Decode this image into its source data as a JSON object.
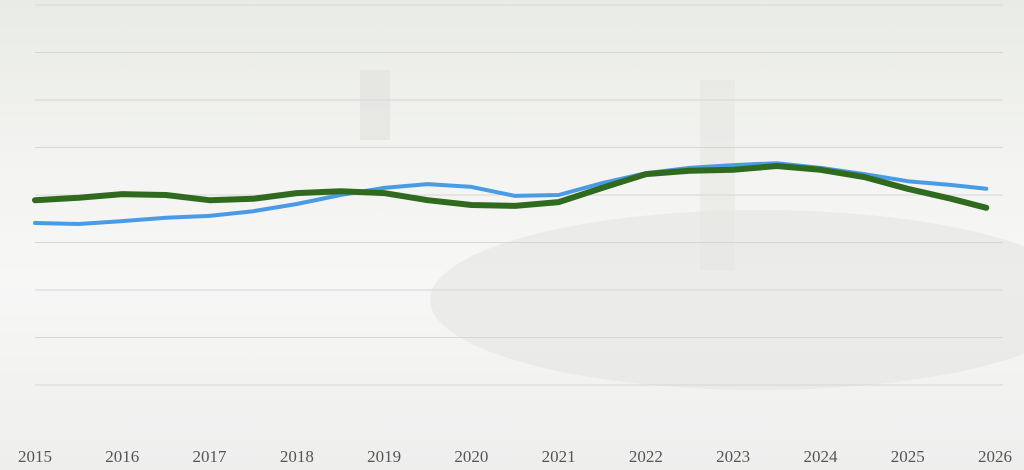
{
  "chart_data": {
    "type": "line",
    "x": [
      2015,
      2015.5,
      2016,
      2016.5,
      2017,
      2017.5,
      2018,
      2018.5,
      2019,
      2019.5,
      2020,
      2020.5,
      2021,
      2021.5,
      2022,
      2022.5,
      2023,
      2023.5,
      2024,
      2024.5,
      2025,
      2025.5,
      2025.9
    ],
    "series": [
      {
        "color": "#4a9be6",
        "values": [
          3.41,
          3.39,
          3.45,
          3.52,
          3.56,
          3.66,
          3.81,
          4.0,
          4.15,
          4.23,
          4.17,
          3.98,
          4.0,
          4.25,
          4.46,
          4.57,
          4.63,
          4.67,
          4.57,
          4.44,
          4.29,
          4.21,
          4.13
        ]
      },
      {
        "color": "#2f6a1f",
        "values": [
          3.89,
          3.94,
          4.02,
          4.0,
          3.89,
          3.92,
          4.04,
          4.08,
          4.04,
          3.89,
          3.79,
          3.77,
          3.85,
          4.15,
          4.44,
          4.51,
          4.53,
          4.61,
          4.53,
          4.38,
          4.13,
          3.92,
          3.73
        ]
      }
    ],
    "xlim": [
      2015,
      2026
    ],
    "xticks": [
      2015,
      2016,
      2017,
      2018,
      2019,
      2020,
      2021,
      2022,
      2023,
      2024,
      2025,
      2026
    ],
    "ylim": [
      0,
      8
    ],
    "ygrid": [
      0,
      1,
      2,
      3,
      4,
      5,
      6,
      7,
      8
    ],
    "grid": true
  }
}
